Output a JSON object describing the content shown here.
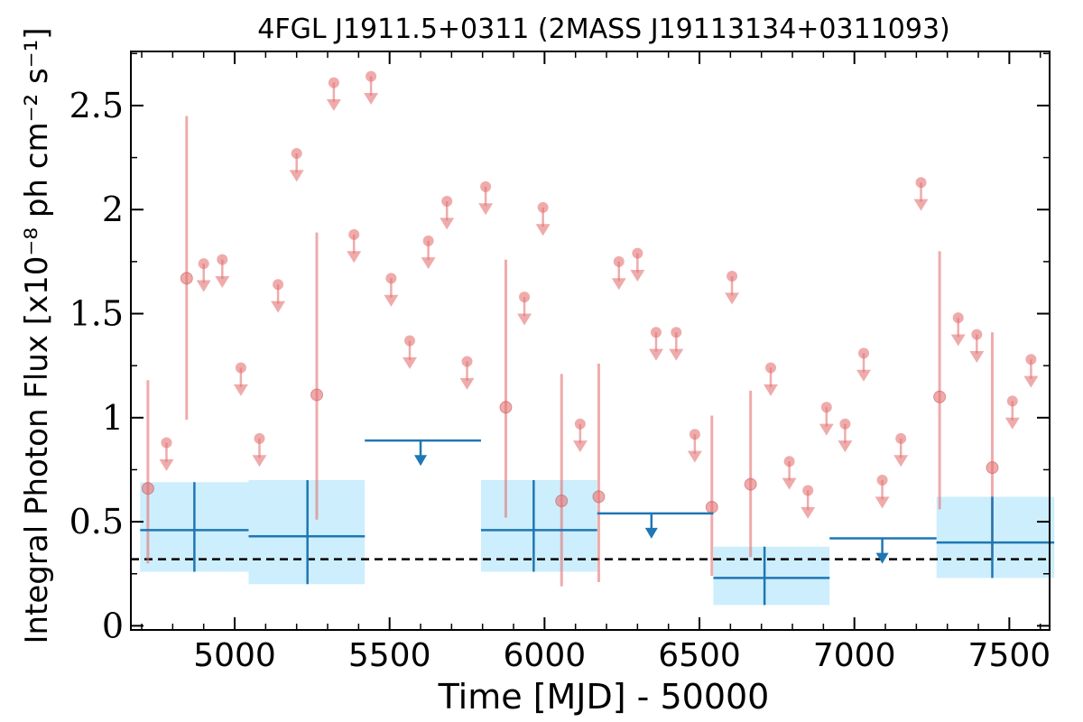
{
  "chart_data": {
    "type": "scatter",
    "title": "4FGL J1911.5+0311 (2MASS J19113134+0311093)",
    "xlabel": "Time [MJD] - 50000",
    "ylabel": "Integral Photon Flux [x10⁻⁸ ph cm⁻² s⁻¹]",
    "xlim": [
      4665,
      7630
    ],
    "ylim": [
      -0.02,
      2.76
    ],
    "x_ticks": [
      5000,
      5500,
      6000,
      6500,
      7000,
      7500
    ],
    "y_ticks": [
      0,
      0.5,
      1,
      1.5,
      2,
      2.5
    ],
    "y_tick_labels": [
      "0",
      "0.5",
      "1",
      "1.5",
      "2",
      "2.5"
    ],
    "reference_line": {
      "y": 0.32,
      "style": "dashed",
      "color": "#000000"
    },
    "colors": {
      "short_bins": "#e57373",
      "long_bins": "#1f77b4",
      "long_bins_band": "#cdeefc"
    },
    "series": [
      {
        "name": "",
        "kind": "detections",
        "color": "#e57373",
        "points": [
          {
            "x": 4720,
            "y": 0.66,
            "ylow": 0.3,
            "yhigh": 1.18
          },
          {
            "x": 4845,
            "y": 1.67,
            "ylow": 0.99,
            "yhigh": 2.45
          },
          {
            "x": 5265,
            "y": 1.11,
            "ylow": 0.51,
            "yhigh": 1.89
          },
          {
            "x": 5875,
            "y": 1.05,
            "ylow": 0.52,
            "yhigh": 1.76
          },
          {
            "x": 6055,
            "y": 0.6,
            "ylow": 0.19,
            "yhigh": 1.21
          },
          {
            "x": 6175,
            "y": 0.62,
            "ylow": 0.21,
            "yhigh": 1.26
          },
          {
            "x": 6540,
            "y": 0.57,
            "ylow": 0.24,
            "yhigh": 1.01
          },
          {
            "x": 6665,
            "y": 0.68,
            "ylow": 0.33,
            "yhigh": 1.13
          },
          {
            "x": 7275,
            "y": 1.1,
            "ylow": 0.56,
            "yhigh": 1.8
          },
          {
            "x": 7445,
            "y": 0.76,
            "ylow": 0.33,
            "yhigh": 1.41
          }
        ]
      },
      {
        "name": "",
        "kind": "upper_limits",
        "color": "#e57373",
        "points": [
          {
            "x": 4780,
            "y": 0.88
          },
          {
            "x": 4900,
            "y": 1.74
          },
          {
            "x": 4960,
            "y": 1.76
          },
          {
            "x": 5020,
            "y": 1.24
          },
          {
            "x": 5080,
            "y": 0.9
          },
          {
            "x": 5140,
            "y": 1.64
          },
          {
            "x": 5200,
            "y": 2.27
          },
          {
            "x": 5320,
            "y": 2.61
          },
          {
            "x": 5385,
            "y": 1.88
          },
          {
            "x": 5440,
            "y": 2.64
          },
          {
            "x": 5505,
            "y": 1.67
          },
          {
            "x": 5565,
            "y": 1.37
          },
          {
            "x": 5625,
            "y": 1.85
          },
          {
            "x": 5685,
            "y": 2.04
          },
          {
            "x": 5750,
            "y": 1.27
          },
          {
            "x": 5810,
            "y": 2.11
          },
          {
            "x": 5935,
            "y": 1.58
          },
          {
            "x": 5995,
            "y": 2.01
          },
          {
            "x": 6115,
            "y": 0.97
          },
          {
            "x": 6240,
            "y": 1.75
          },
          {
            "x": 6300,
            "y": 1.79
          },
          {
            "x": 6360,
            "y": 1.41
          },
          {
            "x": 6425,
            "y": 1.41
          },
          {
            "x": 6485,
            "y": 0.92
          },
          {
            "x": 6605,
            "y": 1.68
          },
          {
            "x": 6730,
            "y": 1.24
          },
          {
            "x": 6790,
            "y": 0.79
          },
          {
            "x": 6850,
            "y": 0.65
          },
          {
            "x": 6910,
            "y": 1.05
          },
          {
            "x": 6970,
            "y": 0.97
          },
          {
            "x": 7030,
            "y": 1.31
          },
          {
            "x": 7090,
            "y": 0.7
          },
          {
            "x": 7150,
            "y": 0.9
          },
          {
            "x": 7215,
            "y": 2.13
          },
          {
            "x": 7335,
            "y": 1.48
          },
          {
            "x": 7395,
            "y": 1.4
          },
          {
            "x": 7510,
            "y": 1.08
          },
          {
            "x": 7570,
            "y": 1.28
          }
        ]
      },
      {
        "name": "",
        "kind": "long_bins_detections",
        "color": "#1f77b4",
        "points": [
          {
            "x": 4870,
            "xlow": 4695,
            "xhigh": 5045,
            "y": 0.46,
            "ylow": 0.26,
            "yhigh": 0.69
          },
          {
            "x": 5235,
            "xlow": 5045,
            "xhigh": 5420,
            "y": 0.43,
            "ylow": 0.2,
            "yhigh": 0.7
          },
          {
            "x": 5965,
            "xlow": 5795,
            "xhigh": 6170,
            "y": 0.46,
            "ylow": 0.26,
            "yhigh": 0.7
          },
          {
            "x": 6710,
            "xlow": 6545,
            "xhigh": 6920,
            "y": 0.23,
            "ylow": 0.1,
            "yhigh": 0.38
          },
          {
            "x": 7445,
            "xlow": 7265,
            "xhigh": 7645,
            "y": 0.4,
            "ylow": 0.23,
            "yhigh": 0.62
          }
        ]
      },
      {
        "name": "",
        "kind": "long_bins_upper_limits",
        "color": "#1f77b4",
        "points": [
          {
            "x": 5600,
            "xlow": 5420,
            "xhigh": 5795,
            "y": 0.89
          },
          {
            "x": 6345,
            "xlow": 6170,
            "xhigh": 6545,
            "y": 0.54
          },
          {
            "x": 7090,
            "xlow": 6920,
            "xhigh": 7265,
            "y": 0.42
          }
        ]
      }
    ]
  }
}
